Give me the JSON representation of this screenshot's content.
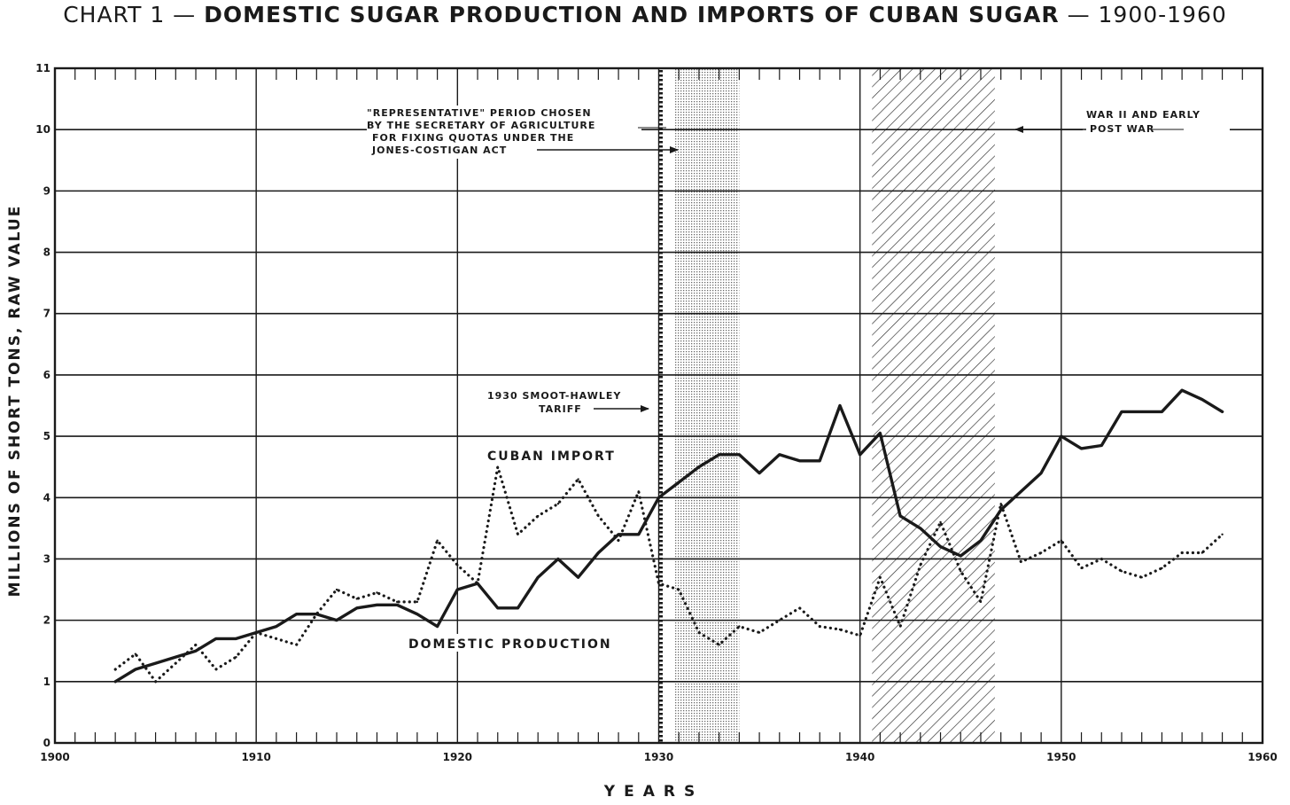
{
  "title": {
    "prefix": "CHART 1 —",
    "main": "DOMESTIC SUGAR PRODUCTION AND IMPORTS OF CUBAN SUGAR",
    "suffix": "— 1900-1960"
  },
  "colors": {
    "ink": "#1a1a1a",
    "paper": "#ffffff",
    "band_fill": "#d9d9d9"
  },
  "chart_data": {
    "type": "line",
    "xlabel": "YEARS",
    "ylabel": "MILLIONS OF SHORT TONS, RAW VALUE",
    "xlim": [
      1900,
      1960
    ],
    "ylim": [
      0,
      11
    ],
    "grid": true,
    "x_ticks": [
      1900,
      1910,
      1920,
      1930,
      1940,
      1950,
      1960
    ],
    "y_ticks": [
      0,
      1,
      2,
      3,
      4,
      5,
      6,
      7,
      8,
      9,
      10,
      11
    ],
    "series": [
      {
        "name": "CUBAN IMPORT",
        "style": "solid",
        "x": [
          1903,
          1904,
          1905,
          1906,
          1907,
          1908,
          1909,
          1910,
          1911,
          1912,
          1913,
          1914,
          1915,
          1916,
          1917,
          1918,
          1919,
          1920,
          1921,
          1922,
          1923,
          1924,
          1925,
          1926,
          1927,
          1928,
          1929,
          1930,
          1931,
          1932,
          1933,
          1934,
          1935,
          1936,
          1937,
          1938,
          1939,
          1940,
          1941,
          1942,
          1943,
          1944,
          1945,
          1946,
          1947,
          1948,
          1949,
          1950,
          1951,
          1952,
          1953,
          1954,
          1955,
          1956,
          1957,
          1958
        ],
        "y": [
          1.0,
          1.2,
          1.3,
          1.4,
          1.5,
          1.7,
          1.7,
          1.8,
          1.9,
          2.1,
          2.1,
          2.0,
          2.2,
          2.25,
          2.25,
          2.1,
          1.9,
          2.5,
          2.6,
          2.2,
          2.2,
          2.7,
          3.0,
          2.7,
          3.1,
          3.4,
          3.4,
          4.0,
          4.25,
          4.5,
          4.7,
          4.7,
          4.4,
          4.7,
          4.6,
          4.6,
          5.5,
          4.7,
          5.05,
          3.7,
          3.5,
          3.2,
          3.05,
          3.3,
          3.8,
          4.1,
          4.4,
          5.0,
          4.8,
          4.85,
          5.4,
          5.4,
          5.4,
          5.75,
          5.6,
          5.4
        ]
      },
      {
        "name": "DOMESTIC PRODUCTION",
        "style": "dotted",
        "x": [
          1903,
          1904,
          1905,
          1906,
          1907,
          1908,
          1909,
          1910,
          1911,
          1912,
          1913,
          1914,
          1915,
          1916,
          1917,
          1918,
          1919,
          1920,
          1921,
          1922,
          1923,
          1924,
          1925,
          1926,
          1927,
          1928,
          1929,
          1930,
          1931,
          1932,
          1933,
          1934,
          1935,
          1936,
          1937,
          1938,
          1939,
          1940,
          1941,
          1942,
          1943,
          1944,
          1945,
          1946,
          1947,
          1948,
          1949,
          1950,
          1951,
          1952,
          1953,
          1954,
          1955,
          1956,
          1957,
          1958
        ],
        "y": [
          1.2,
          1.45,
          1.0,
          1.3,
          1.6,
          1.2,
          1.4,
          1.8,
          1.7,
          1.6,
          2.1,
          2.5,
          2.35,
          2.45,
          2.3,
          2.3,
          3.3,
          2.9,
          2.6,
          4.5,
          3.4,
          3.7,
          3.9,
          4.3,
          3.7,
          3.3,
          4.1,
          2.6,
          2.5,
          1.8,
          1.6,
          1.9,
          1.8,
          2.0,
          2.2,
          1.9,
          1.85,
          1.75,
          2.7,
          1.9,
          2.9,
          3.6,
          2.8,
          2.3,
          3.9,
          2.95,
          3.1,
          3.3,
          2.85,
          3.0,
          2.8,
          2.7,
          2.85,
          3.1,
          3.1,
          3.4
        ]
      }
    ],
    "bands": [
      {
        "from": 1930.8,
        "to": 1934.0,
        "pattern": "dotted-shade"
      },
      {
        "from": 1940.6,
        "to": 1946.7,
        "pattern": "diagonal-hatch"
      }
    ],
    "markers": [
      {
        "x": 1930.1,
        "style": "heavy-dotted-vertical"
      }
    ],
    "annotations": [
      {
        "lines": [
          "\"REPRESENTATIVE\" PERIOD CHOSEN",
          "BY THE SECRETARY OF AGRICULTURE",
          "FOR FIXING QUOTAS UNDER THE",
          "JONES-COSTIGAN ACT"
        ],
        "arrow": "right"
      },
      {
        "lines": [
          "1930 SMOOT-HAWLEY",
          "TARIFF"
        ],
        "arrow": "right"
      },
      {
        "lines": [
          "WAR II AND EARLY",
          "POST WAR"
        ],
        "arrow": "left"
      }
    ]
  }
}
